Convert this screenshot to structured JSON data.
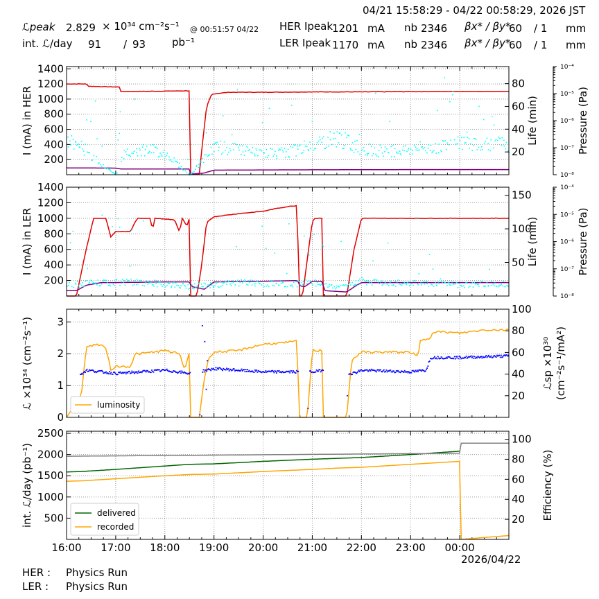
{
  "header": {
    "time_range": "04/21 15:58:29 - 04/22 00:58:29, 2026 JST",
    "lpeak_label": "ℒpeak",
    "lpeak_value": "2.829",
    "lpeak_unit": "× 10³⁴ cm⁻²s⁻¹",
    "lpeak_time": "@ 00:51:57 04/22",
    "intl_label": "int. ℒ/day",
    "intl_delivered": "91",
    "intl_sep": "/",
    "intl_recorded": "93",
    "intl_unit": "pb⁻¹",
    "her_label": "HER Ipeak",
    "her_value": "1201",
    "ler_label": "LER Ipeak",
    "ler_value": "1170",
    "current_unit": "mA",
    "nb_label": "nb",
    "her_nb": "2346",
    "ler_nb": "2346",
    "beta_label": "βx* / βy*",
    "her_beta": "60",
    "her_beta_y": "/ 1",
    "ler_beta": "60",
    "ler_beta_y": "/ 1",
    "beta_unit": "mm"
  },
  "footer": {
    "her_label": "HER :",
    "her_status": "Physics Run",
    "ler_label": "LER :",
    "ler_status": "Physics Run",
    "date_label": "2026/04/22"
  },
  "chart_data": [
    {
      "type": "line",
      "ylabel": "I (mA) in HER",
      "y2label": "Life (min)",
      "y3label": "Pressure (Pa)",
      "ylim": [
        0,
        1430
      ],
      "yticks": [
        200,
        400,
        600,
        800,
        1000,
        1200,
        1400
      ],
      "y2lim": [
        0,
        95
      ],
      "y2ticks": [
        20,
        40,
        60,
        80
      ],
      "y3ticks": [
        "10⁻⁸",
        "10⁻⁷",
        "10⁻⁶",
        "10⁻⁵",
        "10⁻⁴"
      ],
      "series": [
        {
          "kind": "current",
          "color": "#e00000",
          "x": [
            16.0,
            16.4,
            16.45,
            17.0,
            17.08,
            17.1,
            18.0,
            18.5,
            18.52,
            18.7,
            18.78,
            18.85,
            18.95,
            19.0,
            19.3,
            20.0,
            21.0,
            22.0,
            23.0,
            24.0,
            25.0
          ],
          "values": [
            1200,
            1200,
            1170,
            1160,
            1160,
            1100,
            1105,
            1110,
            10,
            10,
            500,
            900,
            1060,
            1070,
            1090,
            1090,
            1095,
            1095,
            1098,
            1100,
            1100
          ]
        },
        {
          "kind": "life",
          "color": "#800080",
          "x": [
            16.0,
            17.0,
            17.1,
            18.0,
            18.5,
            18.52,
            18.8,
            19.0,
            20.0,
            21.0,
            22.0,
            23.0,
            25.0
          ],
          "values": [
            6,
            5.8,
            5,
            5,
            5,
            0.5,
            1.5,
            4,
            4.2,
            4.3,
            4.4,
            4.5,
            4.5
          ]
        },
        {
          "kind": "pressure",
          "color": "cyan",
          "x": [
            16.0,
            16.2,
            17.0,
            17.2,
            17.6,
            18.0,
            18.5,
            19.0,
            19.5,
            20.0,
            20.5,
            21.0,
            21.5,
            22.0,
            22.5,
            23.0,
            23.5,
            24.0,
            24.5,
            25.0
          ],
          "values": [
            440,
            420,
            0,
            330,
            340,
            300,
            0,
            380,
            330,
            280,
            300,
            410,
            500,
            350,
            320,
            340,
            380,
            420,
            430,
            400
          ]
        }
      ]
    },
    {
      "type": "line",
      "ylabel": "I (mA) in LER",
      "y2label": "Life (min)",
      "y3label": "Pressure (Pa)",
      "ylim": [
        0,
        1400
      ],
      "yticks": [
        200,
        400,
        600,
        800,
        1000,
        1200,
        1400
      ],
      "y2lim": [
        0,
        162
      ],
      "y2ticks": [
        50,
        100,
        150
      ],
      "y3ticks": [
        "10⁻⁸",
        "10⁻⁷",
        "10⁻⁶",
        "10⁻⁵",
        "10⁻⁴"
      ],
      "series": [
        {
          "kind": "current",
          "color": "#e00000",
          "x": [
            16.0,
            16.2,
            16.4,
            16.55,
            16.7,
            16.8,
            16.9,
            17.0,
            17.3,
            17.4,
            17.45,
            17.5,
            17.7,
            17.75,
            17.8,
            18.2,
            18.3,
            18.35,
            18.45,
            18.5,
            18.52,
            18.65,
            18.75,
            18.85,
            19.0,
            19.5,
            20.0,
            20.3,
            20.5,
            20.7,
            20.72,
            20.8,
            21.0,
            21.05,
            21.2,
            21.22,
            21.7,
            21.85,
            22.0,
            23.0,
            24.0,
            25.0
          ],
          "values": [
            0,
            0,
            600,
            1000,
            1000,
            1000,
            760,
            830,
            830,
            960,
            1000,
            1000,
            1000,
            850,
            1000,
            980,
            820,
            1000,
            900,
            1000,
            0,
            0,
            400,
            950,
            1020,
            1060,
            1090,
            1130,
            1150,
            1165,
            0,
            0,
            960,
            1000,
            1000,
            0,
            0,
            600,
            1000,
            1000,
            1000,
            1000
          ]
        },
        {
          "kind": "life",
          "color": "#800080",
          "x": [
            16.0,
            16.2,
            16.4,
            16.7,
            17.0,
            18.0,
            18.5,
            18.55,
            18.8,
            19.0,
            20.0,
            20.7,
            20.75,
            20.85,
            21.0,
            21.2,
            21.25,
            21.7,
            21.9,
            22.0,
            23.0,
            25.0
          ],
          "values": [
            8,
            8,
            16,
            20,
            20,
            21,
            21,
            14,
            10,
            21,
            22,
            23,
            15,
            14,
            22,
            22,
            8,
            6,
            16,
            20,
            20,
            20
          ]
        },
        {
          "kind": "pressure",
          "color": "cyan",
          "x": [
            16.0,
            16.5,
            17.0,
            17.5,
            18.0,
            18.5,
            19.0,
            19.5,
            20.0,
            20.5,
            21.0,
            21.5,
            22.0,
            22.5,
            23.0,
            23.5,
            24.0,
            24.5,
            25.0
          ],
          "values": [
            150,
            170,
            180,
            180,
            160,
            130,
            150,
            180,
            170,
            160,
            180,
            120,
            200,
            180,
            170,
            160,
            150,
            160,
            160
          ]
        }
      ]
    },
    {
      "type": "line",
      "ylabel": "ℒ ×10³⁴ (cm⁻²s⁻¹)",
      "y2label": "ℒsp ×10³⁰",
      "y2label2": "(cm⁻²s⁻¹/mA²)",
      "ylim": [
        0,
        3.4
      ],
      "yticks": [
        0,
        1,
        2,
        3
      ],
      "y2lim": [
        0,
        100
      ],
      "y2ticks": [
        20,
        40,
        60,
        80,
        100
      ],
      "legend": "luminosity",
      "series": [
        {
          "name": "luminosity",
          "color": "orange",
          "x": [
            16.0,
            16.3,
            16.4,
            16.6,
            16.8,
            16.9,
            17.0,
            17.3,
            17.4,
            17.5,
            18.0,
            18.3,
            18.4,
            18.5,
            18.52,
            18.7,
            18.8,
            18.9,
            19.0,
            19.5,
            20.0,
            20.5,
            20.7,
            20.72,
            20.9,
            21.0,
            21.2,
            21.22,
            21.7,
            21.8,
            22.0,
            22.5,
            23.0,
            23.15,
            23.2,
            23.4,
            23.45,
            24.0,
            24.5,
            25.0
          ],
          "values": [
            0,
            0.7,
            2.2,
            2.3,
            2.2,
            1.5,
            1.6,
            1.6,
            2.0,
            2.0,
            2.1,
            2.0,
            1.5,
            2.05,
            0,
            0,
            1.2,
            1.9,
            2.05,
            2.1,
            2.3,
            2.35,
            2.4,
            0,
            0,
            2.1,
            2.1,
            0,
            0,
            1.8,
            2.05,
            2.05,
            2.05,
            1.9,
            2.4,
            2.5,
            2.7,
            2.65,
            2.75,
            2.75
          ]
        },
        {
          "name": "Lsp",
          "color": "blue",
          "x": [
            16.2,
            16.4,
            17.0,
            18.0,
            18.5,
            19.0,
            20.0,
            20.7,
            21.0,
            21.2,
            21.8,
            22.0,
            23.0,
            23.3,
            23.4,
            24.0,
            25.0
          ],
          "values": [
            1.3,
            1.5,
            1.4,
            1.5,
            1.4,
            1.55,
            1.45,
            1.45,
            1.45,
            1.5,
            1.4,
            1.5,
            1.45,
            1.5,
            1.9,
            1.9,
            1.95
          ]
        }
      ]
    },
    {
      "type": "line",
      "ylabel": "int. ℒ/day (pb⁻¹)",
      "y2label": "Efficiency (%)",
      "ylim": [
        0,
        2550
      ],
      "yticks": [
        500,
        1000,
        1500,
        2000,
        2500
      ],
      "y2lim": [
        0,
        108
      ],
      "y2ticks": [
        20,
        40,
        60,
        80,
        100
      ],
      "categories": [
        "16:00",
        "17:00",
        "18:00",
        "19:00",
        "20:00",
        "21:00",
        "22:00",
        "23:00",
        "00:00"
      ],
      "legend": [
        "delivered",
        "recorded"
      ],
      "series": [
        {
          "name": "delivered",
          "color": "darkgreen",
          "x": [
            16.0,
            16.3,
            17.0,
            18.0,
            18.5,
            19.0,
            20.0,
            21.0,
            21.5,
            22.0,
            23.0,
            24.0
          ],
          "values": [
            1590,
            1600,
            1650,
            1730,
            1770,
            1780,
            1840,
            1890,
            1910,
            1930,
            2000,
            2080
          ]
        },
        {
          "name": "recorded",
          "color": "orange",
          "x": [
            16.0,
            16.3,
            17.0,
            18.0,
            18.5,
            19.0,
            20.0,
            21.0,
            21.5,
            22.0,
            23.0,
            24.0,
            24.02,
            25.0
          ],
          "values": [
            1370,
            1380,
            1430,
            1500,
            1530,
            1540,
            1600,
            1650,
            1680,
            1700,
            1770,
            1840,
            0,
            90
          ]
        },
        {
          "name": "efficiency",
          "color": "gray",
          "x": [
            16.0,
            24.0,
            24.02,
            25.0
          ],
          "values": [
            83,
            86,
            96,
            96
          ]
        }
      ]
    }
  ]
}
